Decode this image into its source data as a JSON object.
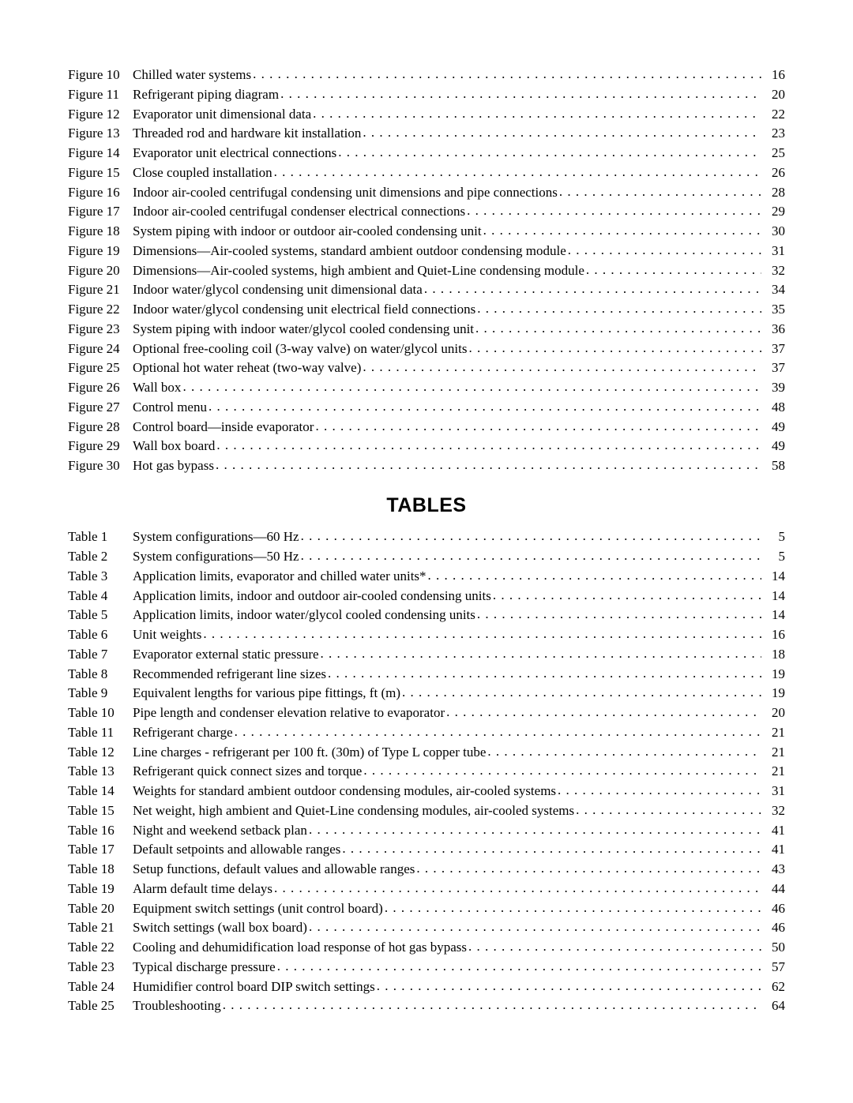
{
  "figures": [
    {
      "label": "Figure 10",
      "title": "Chilled water systems",
      "page": "16"
    },
    {
      "label": "Figure 11",
      "title": "Refrigerant piping diagram ",
      "page": "20"
    },
    {
      "label": "Figure 12",
      "title": "Evaporator unit dimensional data",
      "page": "22"
    },
    {
      "label": "Figure 13",
      "title": "Threaded rod and hardware kit installation",
      "page": "23"
    },
    {
      "label": "Figure 14",
      "title": "Evaporator unit electrical connections ",
      "page": "25"
    },
    {
      "label": "Figure 15",
      "title": "Close coupled installation",
      "page": "26"
    },
    {
      "label": "Figure 16",
      "title": "Indoor air-cooled centrifugal condensing unit dimensions and pipe connections",
      "page": "28"
    },
    {
      "label": "Figure 17",
      "title": "Indoor air-cooled centrifugal condenser electrical connections ",
      "page": "29"
    },
    {
      "label": "Figure 18",
      "title": "System piping with indoor or outdoor air-cooled condensing unit",
      "page": "30"
    },
    {
      "label": "Figure 19",
      "title": "Dimensions—Air-cooled systems, standard ambient outdoor condensing module",
      "page": "31"
    },
    {
      "label": "Figure 20",
      "title": "Dimensions—Air-cooled systems, high ambient and Quiet-Line condensing module ",
      "page": "32"
    },
    {
      "label": "Figure 21",
      "title": "Indoor water/glycol condensing unit dimensional data ",
      "page": "34"
    },
    {
      "label": "Figure 22",
      "title": "Indoor water/glycol condensing unit electrical field connections",
      "page": "35"
    },
    {
      "label": "Figure 23",
      "title": "System piping with indoor water/glycol cooled condensing unit ",
      "page": "36"
    },
    {
      "label": "Figure 24",
      "title": "Optional free-cooling coil (3-way valve) on water/glycol units",
      "page": "37"
    },
    {
      "label": "Figure 25",
      "title": "Optional hot water reheat (two-way valve)",
      "page": "37"
    },
    {
      "label": "Figure 26",
      "title": "Wall box",
      "page": "39"
    },
    {
      "label": "Figure 27",
      "title": "Control menu",
      "page": "48"
    },
    {
      "label": "Figure 28",
      "title": "Control board—inside evaporator ",
      "page": "49"
    },
    {
      "label": "Figure 29",
      "title": "Wall box board",
      "page": "49"
    },
    {
      "label": "Figure 30",
      "title": "Hot gas bypass",
      "page": "58"
    }
  ],
  "tables_heading": "TABLES",
  "tables": [
    {
      "label": "Table 1",
      "title": "System configurations—60 Hz",
      "page": "5"
    },
    {
      "label": "Table 2",
      "title": "System configurations—50 Hz",
      "page": "5"
    },
    {
      "label": "Table 3",
      "title": "Application limits, evaporator and chilled water units*",
      "page": "14"
    },
    {
      "label": "Table 4",
      "title": "Application limits, indoor and outdoor air-cooled condensing units ",
      "page": "14"
    },
    {
      "label": "Table 5",
      "title": "Application limits, indoor water/glycol cooled condensing units ",
      "page": "14"
    },
    {
      "label": "Table 6",
      "title": "Unit weights ",
      "page": "16"
    },
    {
      "label": "Table 7",
      "title": "Evaporator external static pressure ",
      "page": "18"
    },
    {
      "label": "Table 8",
      "title": "Recommended refrigerant line sizes ",
      "page": "19"
    },
    {
      "label": "Table 9",
      "title": "Equivalent lengths for various pipe fittings, ft (m)",
      "page": "19"
    },
    {
      "label": "Table 10",
      "title": "Pipe length and condenser elevation relative to evaporator ",
      "page": "20"
    },
    {
      "label": "Table 11",
      "title": "Refrigerant charge ",
      "page": "21"
    },
    {
      "label": "Table 12",
      "title": "Line charges - refrigerant per 100 ft. (30m) of Type L copper tube",
      "page": "21"
    },
    {
      "label": "Table 13",
      "title": "Refrigerant quick connect sizes and torque",
      "page": "21"
    },
    {
      "label": "Table 14",
      "title": "Weights for standard ambient outdoor condensing modules, air-cooled systems",
      "page": "31"
    },
    {
      "label": "Table 15",
      "title": "Net weight, high ambient and Quiet-Line condensing modules, air-cooled systems ",
      "page": "32"
    },
    {
      "label": "Table 16",
      "title": "Night and weekend setback plan",
      "page": "41"
    },
    {
      "label": "Table 17",
      "title": "Default setpoints and allowable ranges",
      "page": "41"
    },
    {
      "label": "Table 18",
      "title": "Setup functions, default values and allowable ranges ",
      "page": "43"
    },
    {
      "label": "Table 19",
      "title": "Alarm default time delays ",
      "page": "44"
    },
    {
      "label": "Table 20",
      "title": "Equipment switch settings (unit control board) ",
      "page": "46"
    },
    {
      "label": "Table 21",
      "title": "Switch settings (wall box board) ",
      "page": "46"
    },
    {
      "label": "Table 22",
      "title": "Cooling and dehumidification load response of hot gas bypass ",
      "page": "50"
    },
    {
      "label": "Table 23",
      "title": "Typical discharge pressure",
      "page": "57"
    },
    {
      "label": "Table 24",
      "title": "Humidifier control board DIP switch settings",
      "page": "62"
    },
    {
      "label": "Table 25",
      "title": "Troubleshooting",
      "page": "64"
    }
  ]
}
